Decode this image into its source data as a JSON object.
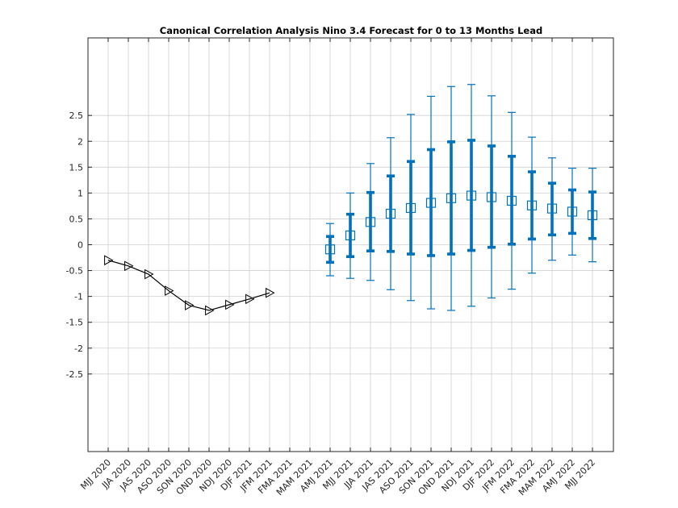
{
  "chart_data": {
    "type": "line",
    "title": "Canonical Correlation Analysis Nino 3.4 Forecast for 0 to 13 Months Lead",
    "xlabel": "",
    "ylabel": "",
    "categories": [
      "MJJ 2020",
      "JJA 2020",
      "JAS 2020",
      "ASO 2020",
      "SON 2020",
      "OND 2020",
      "NDJ 2020",
      "DJF 2021",
      "JFM 2021",
      "FMA 2021",
      "MAM 2021",
      "AMJ 2021",
      "MJJ 2021",
      "JJA 2021",
      "JAS 2021",
      "ASO 2021",
      "SON 2021",
      "OND 2021",
      "NDJ 2021",
      "DJF 2022",
      "JFM 2022",
      "FMA 2022",
      "MAM 2022",
      "AMJ 2022",
      "MJJ 2022"
    ],
    "ylim": [
      -4,
      4
    ],
    "yticks": [
      "2.5",
      "2",
      "1.5",
      "1",
      "0.5",
      "0",
      "-0.5",
      "-1",
      "-1.5",
      "-2",
      "-2.5"
    ],
    "ytick_values": [
      2.5,
      2,
      1.5,
      1,
      0.5,
      0,
      -0.5,
      -1,
      -1.5,
      -2,
      -2.5
    ],
    "grid": true,
    "legend": "none",
    "observed": {
      "color": "#000000",
      "marker": "triangle-right",
      "x": [
        "MJJ 2020",
        "JJA 2020",
        "JAS 2020",
        "ASO 2020",
        "SON 2020",
        "OND 2020",
        "NDJ 2020",
        "DJF 2021",
        "JFM 2021"
      ],
      "values": [
        -0.3,
        -0.41,
        -0.57,
        -0.89,
        -1.17,
        -1.27,
        -1.16,
        -1.05,
        -0.93
      ]
    },
    "forecast": {
      "color": "#0072bd",
      "marker": "square",
      "x": [
        "AMJ 2021",
        "MJJ 2021",
        "JJA 2021",
        "JAS 2021",
        "ASO 2021",
        "SON 2021",
        "OND 2021",
        "NDJ 2021",
        "DJF 2022",
        "JFM 2022",
        "FMA 2022",
        "MAM 2022",
        "AMJ 2022",
        "MJJ 2022"
      ],
      "values": [
        -0.09,
        0.18,
        0.44,
        0.6,
        0.71,
        0.81,
        0.9,
        0.95,
        0.92,
        0.85,
        0.76,
        0.7,
        0.64,
        0.57
      ],
      "inner_low": [
        -0.34,
        -0.23,
        -0.12,
        -0.13,
        -0.18,
        -0.21,
        -0.18,
        -0.11,
        -0.05,
        0.01,
        0.11,
        0.19,
        0.22,
        0.12
      ],
      "inner_high": [
        0.16,
        0.59,
        1.01,
        1.33,
        1.61,
        1.84,
        1.99,
        2.02,
        1.91,
        1.71,
        1.41,
        1.19,
        1.06,
        1.02
      ],
      "outer_low": [
        -0.6,
        -0.65,
        -0.69,
        -0.87,
        -1.08,
        -1.24,
        -1.27,
        -1.19,
        -1.03,
        -0.86,
        -0.55,
        -0.3,
        -0.2,
        -0.33
      ],
      "outer_high": [
        0.41,
        1.0,
        1.57,
        2.07,
        2.52,
        2.87,
        3.06,
        3.1,
        2.88,
        2.56,
        2.08,
        1.68,
        1.48,
        1.48
      ]
    }
  }
}
